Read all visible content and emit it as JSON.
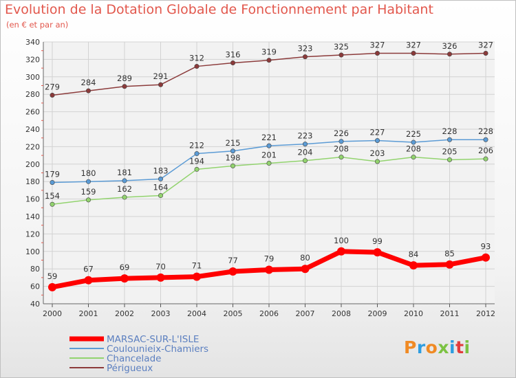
{
  "chart_data": {
    "type": "line",
    "title": "Evolution de la Dotation Globale de Fonctionnement par Habitant",
    "subtitle": "(en € et par an)",
    "xlabel": "",
    "ylabel": "",
    "ylim": [
      40,
      340
    ],
    "yticks": [
      40,
      60,
      80,
      100,
      120,
      140,
      160,
      180,
      200,
      220,
      240,
      260,
      280,
      300,
      320,
      340
    ],
    "x": [
      "2000",
      "2001",
      "2002",
      "2003",
      "2004",
      "2005",
      "2006",
      "2007",
      "2008",
      "2009",
      "2010",
      "2011",
      "2012"
    ],
    "grid": true,
    "legend_position": "bottom-left",
    "series": [
      {
        "name": "MARSAC-SUR-L'ISLE",
        "color": "#ff0000",
        "values": [
          59,
          67,
          69,
          70,
          71,
          77,
          79,
          80,
          100,
          99,
          84,
          85,
          93
        ]
      },
      {
        "name": "Coulounieix-Chamiers",
        "color": "#5b9bd5",
        "values": [
          179,
          180,
          181,
          183,
          212,
          215,
          221,
          223,
          226,
          227,
          225,
          228,
          228
        ]
      },
      {
        "name": "Chancelade",
        "color": "#92d36e",
        "values": [
          154,
          159,
          162,
          164,
          194,
          198,
          201,
          204,
          208,
          203,
          208,
          205,
          206
        ]
      },
      {
        "name": "Périgueux",
        "color": "#8b3a3a",
        "values": [
          279,
          284,
          289,
          291,
          312,
          316,
          319,
          323,
          325,
          327,
          327,
          326,
          327
        ]
      }
    ]
  },
  "logo": {
    "text": "Proxiti",
    "colors": [
      "#f08a24",
      "#2e9de0",
      "#f08a24",
      "#7cc242",
      "#2e9de0",
      "#e23c3c",
      "#7cc242"
    ]
  }
}
